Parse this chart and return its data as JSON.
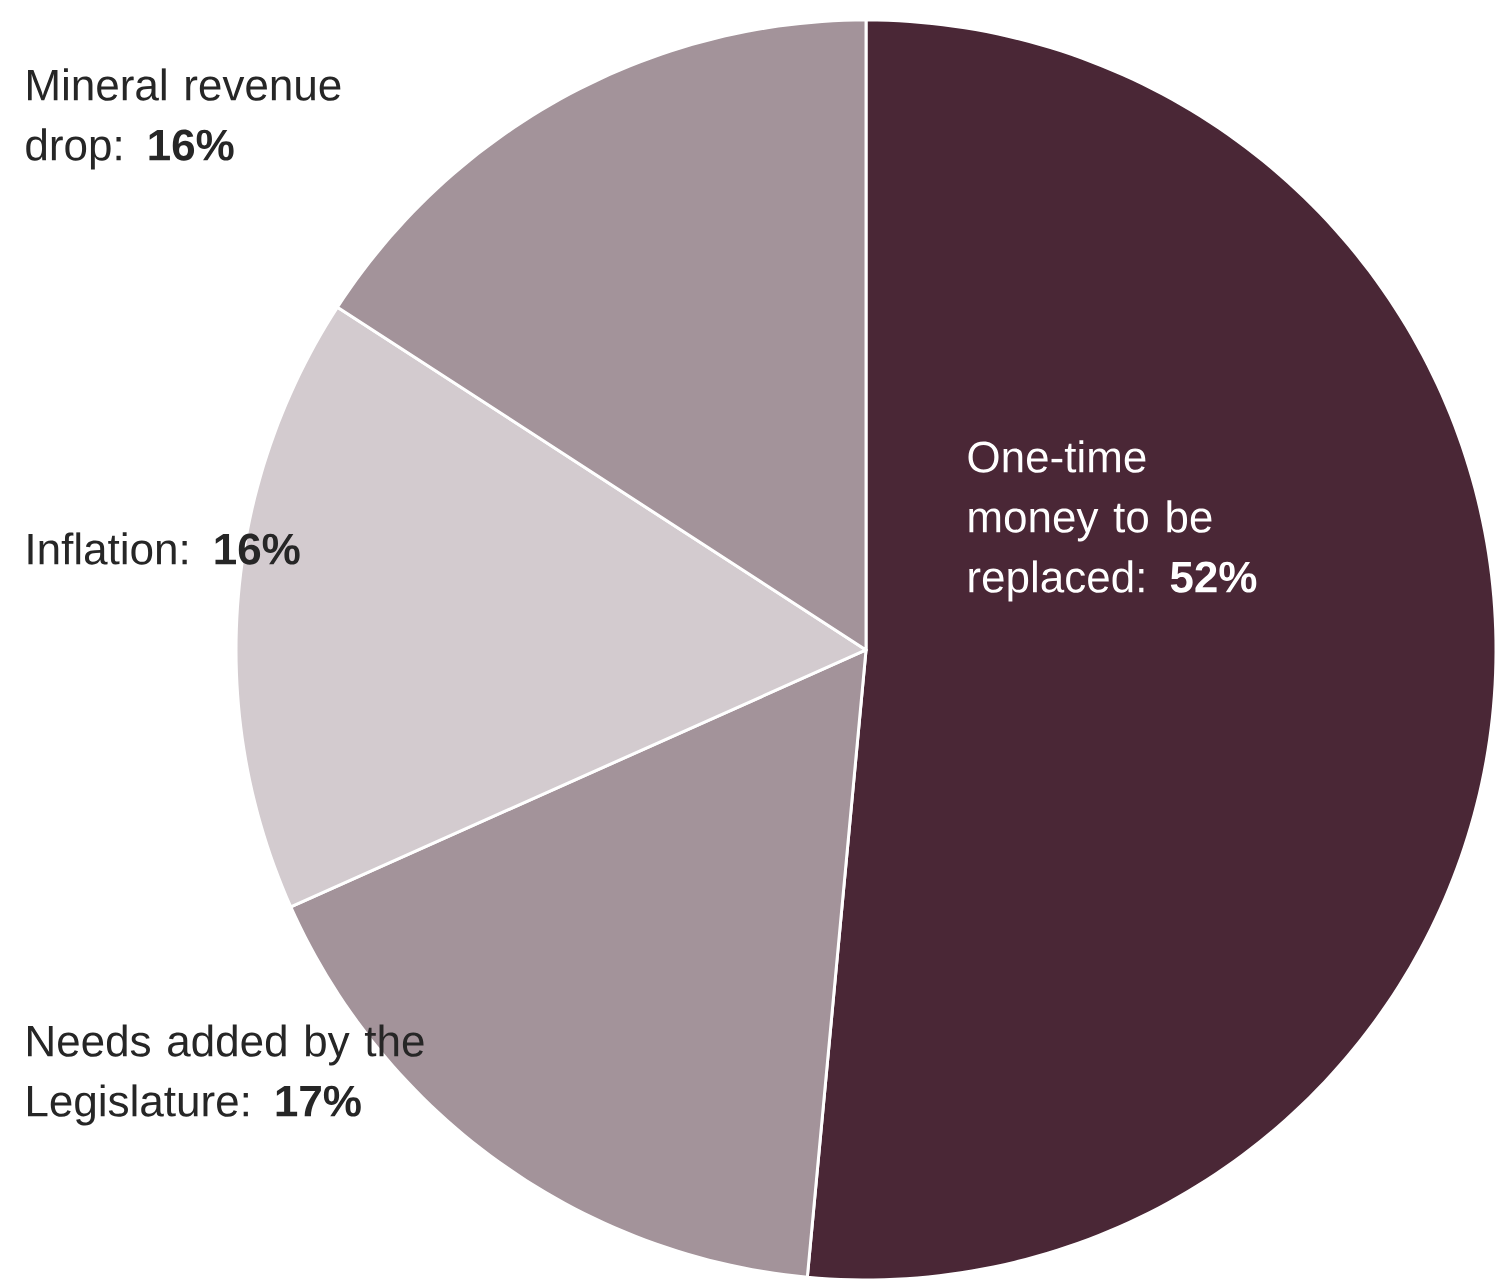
{
  "chart_data": {
    "type": "pie",
    "categories": [
      "One-time money to be replaced",
      "Needs added by the Legislature",
      "Inflation",
      "Mineral revenue drop"
    ],
    "values": [
      52,
      17,
      16,
      16
    ],
    "value_labels": [
      ": **52%**",
      ": **17%**",
      ": **16%**",
      ": **16%**"
    ],
    "colors": [
      "#4a2736",
      "#a3939a",
      "#d3cbcf",
      "#a3939a"
    ]
  }
}
